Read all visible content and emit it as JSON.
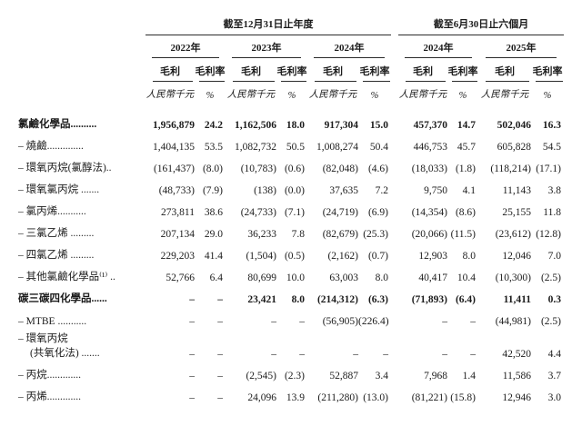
{
  "header": {
    "group_annual": "截至12月31日止年度",
    "group_interim": "截至6月30日止六個月",
    "years": [
      "2022年",
      "2023年",
      "2024年",
      "2024年",
      "2025年"
    ],
    "gp_label": "毛利",
    "gpm_label": "毛利率",
    "gp_unit": "人民幣千元",
    "gpm_unit": "%"
  },
  "table": {
    "rows": [
      {
        "bold": true,
        "label": "氯鹼化學品..........",
        "values": [
          "1,956,879",
          "24.2",
          "1,162,506",
          "18.0",
          "917,304",
          "15.0",
          "457,370",
          "14.7",
          "502,046",
          "16.3"
        ]
      },
      {
        "bold": false,
        "label": "– 燒鹼..............",
        "values": [
          "1,404,135",
          "53.5",
          "1,082,732",
          "50.5",
          "1,008,274",
          "50.4",
          "446,753",
          "45.7",
          "605,828",
          "54.5"
        ]
      },
      {
        "bold": false,
        "label": "– 環氧丙烷(氯醇法)..",
        "values": [
          "(161,437)",
          "(8.0)",
          "(10,783)",
          "(0.6)",
          "(82,048)",
          "(4.6)",
          "(18,033)",
          "(1.8)",
          "(118,214)",
          "(17.1)"
        ]
      },
      {
        "bold": false,
        "label": "– 環氧氯丙烷 .......",
        "values": [
          "(48,733)",
          "(7.9)",
          "(138)",
          "(0.0)",
          "37,635",
          "7.2",
          "9,750",
          "4.1",
          "11,143",
          "3.8"
        ]
      },
      {
        "bold": false,
        "label": "– 氯丙烯...........",
        "values": [
          "273,811",
          "38.6",
          "(24,733)",
          "(7.1)",
          "(24,719)",
          "(6.9)",
          "(14,354)",
          "(8.6)",
          "25,155",
          "11.8"
        ]
      },
      {
        "bold": false,
        "label": "– 三氯乙烯 .........",
        "values": [
          "207,134",
          "29.0",
          "36,233",
          "7.8",
          "(82,679)",
          "(25.3)",
          "(20,066)",
          "(11.5)",
          "(23,612)",
          "(12.8)"
        ]
      },
      {
        "bold": false,
        "label": "– 四氯乙烯 .........",
        "values": [
          "229,203",
          "41.4",
          "(1,504)",
          "(0.5)",
          "(2,162)",
          "(0.7)",
          "12,903",
          "8.0",
          "12,046",
          "7.0"
        ]
      },
      {
        "bold": false,
        "label": "– 其他氯鹼化學品⁽¹⁾ ..",
        "values": [
          "52,766",
          "6.4",
          "80,699",
          "10.0",
          "63,003",
          "8.0",
          "40,417",
          "10.4",
          "(10,300)",
          "(2.5)"
        ]
      },
      {
        "bold": true,
        "label": "碳三碳四化學品......",
        "values": [
          "–",
          "–",
          "23,421",
          "8.0",
          "(214,312)",
          "(6.3)",
          "(71,893)",
          "(6.4)",
          "11,411",
          "0.3"
        ]
      },
      {
        "bold": false,
        "label": "– MTBE ...........",
        "values": [
          "–",
          "–",
          "–",
          "–",
          "(56,905)",
          "(226.4)",
          "–",
          "–",
          "(44,981)",
          "(2.5)"
        ]
      },
      {
        "bold": false,
        "lines": [
          "– 環氧丙烷",
          "(共氧化法) ......."
        ],
        "values": [
          "–",
          "–",
          "–",
          "–",
          "–",
          "–",
          "–",
          "–",
          "42,520",
          "4.4"
        ]
      },
      {
        "bold": false,
        "label": "– 丙烷.............",
        "values": [
          "–",
          "–",
          "(2,545)",
          "(2.3)",
          "52,887",
          "3.4",
          "7,968",
          "1.4",
          "11,586",
          "3.7"
        ]
      },
      {
        "bold": false,
        "label": "– 丙烯.............",
        "values": [
          "–",
          "–",
          "24,096",
          "13.9",
          "(211,280)",
          "(13.0)",
          "(81,221)",
          "(15.8)",
          "12,946",
          "3.0"
        ]
      }
    ]
  },
  "colors": {
    "background": "#ffffff",
    "text": "#1b1b1b",
    "rule": "#2b2b2b"
  }
}
